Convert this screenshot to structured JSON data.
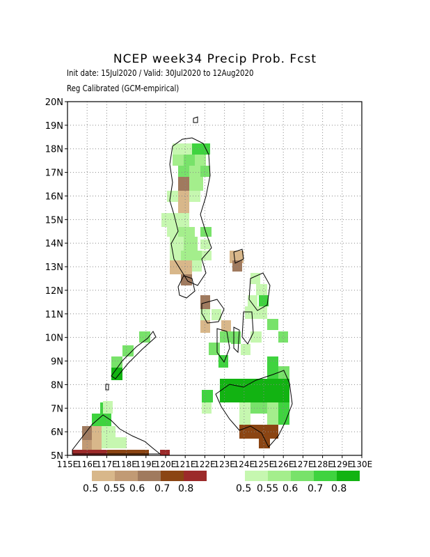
{
  "header": {
    "title": "NCEP week34 Precip Prob. Fcst",
    "init_valid": "Init date: 15Jul2020 / Valid: 30Jul2020 to 12Aug2020",
    "calibration": "Reg Calibrated (GCM-empirical)"
  },
  "axes": {
    "lat_labels": [
      "20N",
      "19N",
      "18N",
      "17N",
      "16N",
      "15N",
      "14N",
      "13N",
      "12N",
      "11N",
      "10N",
      "9N",
      "8N",
      "7N",
      "6N",
      "5N"
    ],
    "lon_labels": [
      "115E",
      "116E",
      "117E",
      "118E",
      "119E",
      "120E",
      "121E",
      "122E",
      "123E",
      "124E",
      "125E",
      "126E",
      "127E",
      "128E",
      "129E",
      "130E"
    ]
  },
  "legend_dry": {
    "colors": [
      "#d8b78a",
      "#c19a74",
      "#a07a5e",
      "#8b4513",
      "#9c2a2a"
    ],
    "labels": [
      "0.5",
      "0.55",
      "0.6",
      "0.7",
      "0.8"
    ]
  },
  "legend_wet": {
    "colors": [
      "#c6f7b0",
      "#a4ee8c",
      "#78e26a",
      "#3fd33f",
      "#12b312"
    ],
    "labels": [
      "0.5",
      "0.55",
      "0.6",
      "0.7",
      "0.8"
    ]
  }
}
